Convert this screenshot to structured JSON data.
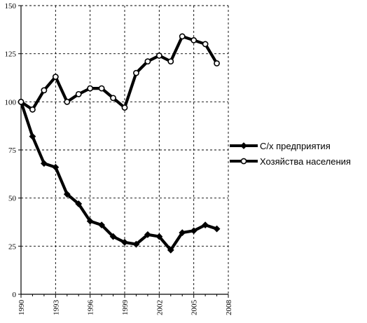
{
  "chart_data": {
    "type": "line",
    "title": "",
    "xlabel": "",
    "ylabel": "",
    "xlim": [
      1990,
      2008
    ],
    "ylim": [
      0,
      150
    ],
    "x_ticks": [
      1990,
      1993,
      1996,
      1999,
      2002,
      2005,
      2008
    ],
    "y_ticks": [
      0,
      25,
      50,
      75,
      100,
      125,
      150
    ],
    "grid": true,
    "legend_position": "right",
    "series": [
      {
        "name": "С/х предприятия",
        "marker": "diamond",
        "color": "#000000",
        "points": [
          [
            1990,
            100
          ],
          [
            1991,
            82
          ],
          [
            1992,
            68
          ],
          [
            1993,
            66
          ],
          [
            1994,
            52
          ],
          [
            1995,
            47
          ],
          [
            1996,
            38
          ],
          [
            1997,
            36
          ],
          [
            1998,
            30
          ],
          [
            1999,
            27
          ],
          [
            2000,
            26
          ],
          [
            2001,
            31
          ],
          [
            2002,
            30
          ],
          [
            2003,
            23
          ],
          [
            2004,
            32
          ],
          [
            2005,
            33
          ],
          [
            2006,
            36
          ],
          [
            2007,
            34
          ]
        ]
      },
      {
        "name": "Хозяйства населения",
        "marker": "circle",
        "color": "#000000",
        "points": [
          [
            1990,
            100
          ],
          [
            1991,
            96
          ],
          [
            1992,
            106
          ],
          [
            1993,
            113
          ],
          [
            1994,
            100
          ],
          [
            1995,
            104
          ],
          [
            1996,
            107
          ],
          [
            1997,
            107
          ],
          [
            1998,
            102
          ],
          [
            1999,
            97
          ],
          [
            2000,
            115
          ],
          [
            2001,
            121
          ],
          [
            2002,
            124
          ],
          [
            2003,
            121
          ],
          [
            2004,
            134
          ],
          [
            2005,
            132
          ],
          [
            2006,
            130
          ],
          [
            2007,
            120
          ]
        ]
      }
    ]
  }
}
